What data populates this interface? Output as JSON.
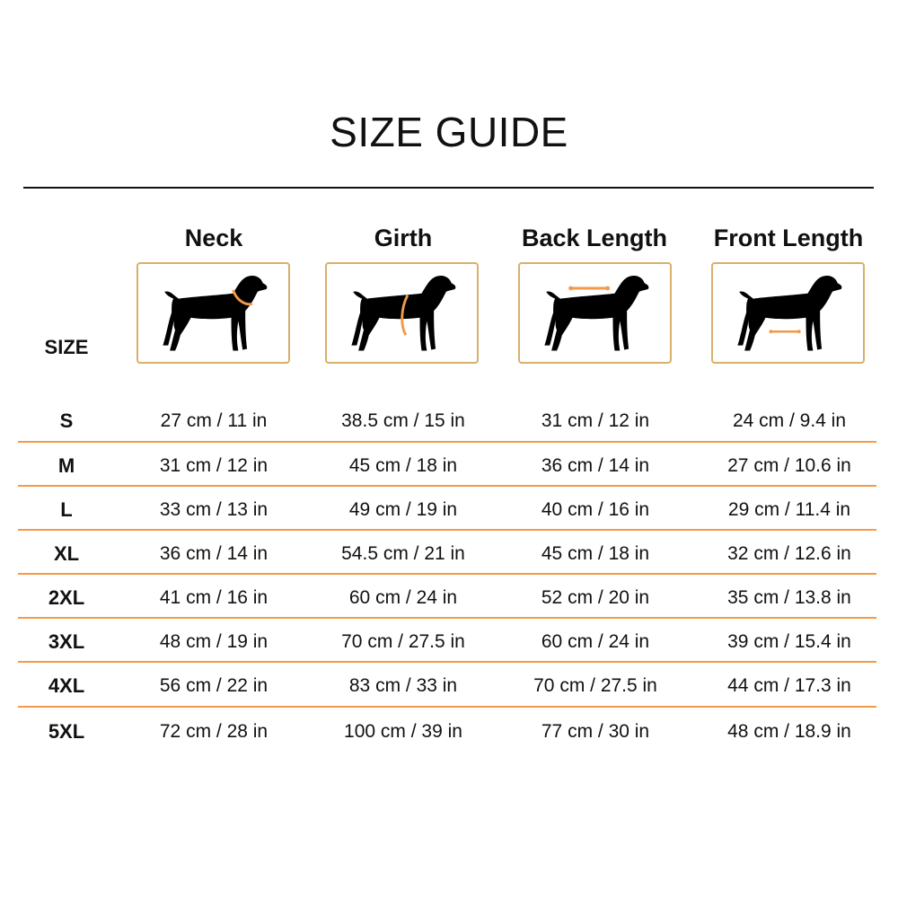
{
  "title": "SIZE GUIDE",
  "size_label": "SIZE",
  "accent_color": "#f39a4a",
  "columns": [
    {
      "label": "Neck",
      "icon": "dog-neck-measurement-icon"
    },
    {
      "label": "Girth",
      "icon": "dog-girth-measurement-icon"
    },
    {
      "label": "Back Length",
      "icon": "dog-back-length-measurement-icon"
    },
    {
      "label": "Front Length",
      "icon": "dog-front-length-measurement-icon"
    }
  ],
  "rows": [
    {
      "size": "S",
      "values": [
        "27 cm / 11 in",
        "38.5 cm / 15 in",
        "31 cm / 12 in",
        "24 cm / 9.4 in"
      ]
    },
    {
      "size": "M",
      "values": [
        "31 cm / 12 in",
        "45 cm / 18 in",
        "36 cm / 14 in",
        "27 cm / 10.6 in"
      ]
    },
    {
      "size": "L",
      "values": [
        "33 cm / 13 in",
        "49 cm / 19 in",
        "40 cm / 16 in",
        "29 cm / 11.4 in"
      ]
    },
    {
      "size": "XL",
      "values": [
        "36 cm / 14 in",
        "54.5 cm / 21 in",
        "45 cm / 18 in",
        "32 cm / 12.6 in"
      ]
    },
    {
      "size": "2XL",
      "values": [
        "41 cm / 16 in",
        "60 cm / 24 in",
        "52 cm / 20 in",
        "35 cm / 13.8 in"
      ]
    },
    {
      "size": "3XL",
      "values": [
        "48 cm / 19 in",
        "70 cm / 27.5 in",
        "60 cm / 24 in",
        "39 cm / 15.4 in"
      ]
    },
    {
      "size": "4XL",
      "values": [
        "56 cm / 22 in",
        "83 cm / 33 in",
        "70 cm / 27.5 in",
        "44 cm / 17.3 in"
      ]
    },
    {
      "size": "5XL",
      "values": [
        "72 cm / 28 in",
        "100 cm / 39 in",
        "77 cm / 30 in",
        "48 cm / 18.9 in"
      ]
    }
  ]
}
